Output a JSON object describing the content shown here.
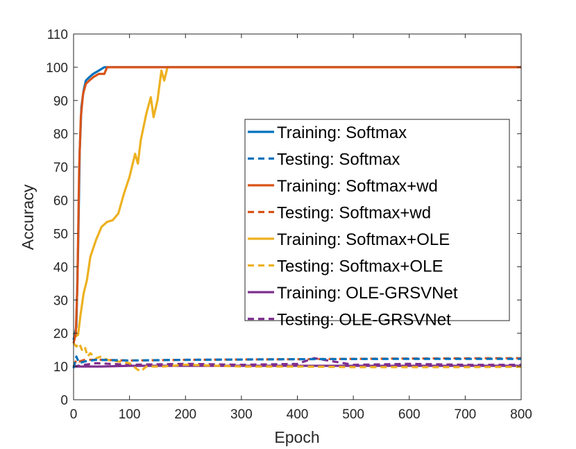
{
  "chart_data": {
    "type": "line",
    "title": "",
    "xlabel": "Epoch",
    "ylabel": "Accuracy",
    "xlim": [
      0,
      800
    ],
    "ylim": [
      0,
      110
    ],
    "xticks": [
      "0",
      "100",
      "200",
      "300",
      "400",
      "500",
      "600",
      "700",
      "800"
    ],
    "yticks": [
      "0",
      "10",
      "20",
      "30",
      "40",
      "50",
      "60",
      "70",
      "80",
      "90",
      "100",
      "110"
    ],
    "grid": false,
    "legend_position": "center-right",
    "series": [
      {
        "name": "Training: Softmax",
        "color": "#0072BD",
        "style": "solid",
        "points": [
          [
            0,
            18
          ],
          [
            5,
            22
          ],
          [
            8,
            45
          ],
          [
            11,
            75
          ],
          [
            14,
            88
          ],
          [
            18,
            93
          ],
          [
            22,
            96
          ],
          [
            28,
            97
          ],
          [
            35,
            98
          ],
          [
            45,
            99
          ],
          [
            55,
            100
          ],
          [
            800,
            100
          ]
        ]
      },
      {
        "name": "Testing: Softmax",
        "color": "#0072BD",
        "style": "dashed",
        "points": [
          [
            0,
            9.5
          ],
          [
            5,
            13
          ],
          [
            10,
            11
          ],
          [
            20,
            11.5
          ],
          [
            40,
            12
          ],
          [
            100,
            11.8
          ],
          [
            200,
            12
          ],
          [
            400,
            12.2
          ],
          [
            600,
            12.3
          ],
          [
            800,
            12.3
          ]
        ]
      },
      {
        "name": "Training: Softmax+wd",
        "color": "#D95319",
        "style": "solid",
        "points": [
          [
            0,
            17
          ],
          [
            4,
            20
          ],
          [
            7,
            35
          ],
          [
            10,
            70
          ],
          [
            13,
            85
          ],
          [
            17,
            92
          ],
          [
            22,
            95
          ],
          [
            28,
            96
          ],
          [
            35,
            97
          ],
          [
            45,
            98
          ],
          [
            55,
            98
          ],
          [
            60,
            100
          ],
          [
            800,
            100
          ]
        ]
      },
      {
        "name": "Testing: Softmax+wd",
        "color": "#D95319",
        "style": "dashed",
        "points": [
          [
            0,
            10
          ],
          [
            5,
            12
          ],
          [
            10,
            11.5
          ],
          [
            20,
            12
          ],
          [
            50,
            12
          ],
          [
            100,
            11.8
          ],
          [
            200,
            12
          ],
          [
            400,
            12.2
          ],
          [
            600,
            12.4
          ],
          [
            800,
            12.5
          ]
        ]
      },
      {
        "name": "Training: Softmax+OLE",
        "color": "#EDB120",
        "style": "solid",
        "points": [
          [
            0,
            20
          ],
          [
            3,
            19
          ],
          [
            8,
            19.5
          ],
          [
            12,
            25
          ],
          [
            18,
            32
          ],
          [
            24,
            36
          ],
          [
            30,
            43
          ],
          [
            40,
            48
          ],
          [
            50,
            52
          ],
          [
            60,
            53.5
          ],
          [
            70,
            54
          ],
          [
            80,
            56
          ],
          [
            90,
            62
          ],
          [
            100,
            67
          ],
          [
            110,
            74
          ],
          [
            115,
            71
          ],
          [
            120,
            78
          ],
          [
            130,
            86
          ],
          [
            138,
            91
          ],
          [
            143,
            85
          ],
          [
            150,
            90
          ],
          [
            157,
            99
          ],
          [
            162,
            96
          ],
          [
            168,
            100
          ],
          [
            800,
            100
          ]
        ]
      },
      {
        "name": "Testing: Softmax+OLE",
        "color": "#EDB120",
        "style": "dashed",
        "points": [
          [
            0,
            17
          ],
          [
            5,
            16
          ],
          [
            10,
            17
          ],
          [
            15,
            15
          ],
          [
            20,
            16
          ],
          [
            25,
            13
          ],
          [
            30,
            14
          ],
          [
            40,
            12.5
          ],
          [
            50,
            13
          ],
          [
            60,
            12
          ],
          [
            80,
            11.5
          ],
          [
            100,
            11
          ],
          [
            115,
            9
          ],
          [
            120,
            8.5
          ],
          [
            130,
            10
          ],
          [
            160,
            10
          ],
          [
            200,
            10.5
          ],
          [
            300,
            10
          ],
          [
            400,
            10
          ],
          [
            500,
            9.8
          ],
          [
            600,
            9.8
          ],
          [
            700,
            9.8
          ],
          [
            800,
            9.9
          ]
        ]
      },
      {
        "name": "Training: OLE-GRSVNet",
        "color": "#7E2F8E",
        "style": "solid",
        "points": [
          [
            0,
            10
          ],
          [
            50,
            10
          ],
          [
            100,
            10.2
          ],
          [
            200,
            10.2
          ],
          [
            300,
            10.2
          ],
          [
            400,
            10.2
          ],
          [
            500,
            10.2
          ],
          [
            600,
            10.2
          ],
          [
            700,
            10.2
          ],
          [
            800,
            10.2
          ]
        ]
      },
      {
        "name": "Testing: OLE-GRSVNet",
        "color": "#7E2F8E",
        "style": "dashed",
        "points": [
          [
            0,
            10
          ],
          [
            40,
            11
          ],
          [
            100,
            10.5
          ],
          [
            200,
            10.8
          ],
          [
            300,
            10.5
          ],
          [
            400,
            10.8
          ],
          [
            430,
            12.5
          ],
          [
            500,
            10.5
          ],
          [
            600,
            10.8
          ],
          [
            700,
            10.5
          ],
          [
            800,
            10.5
          ]
        ]
      }
    ]
  }
}
